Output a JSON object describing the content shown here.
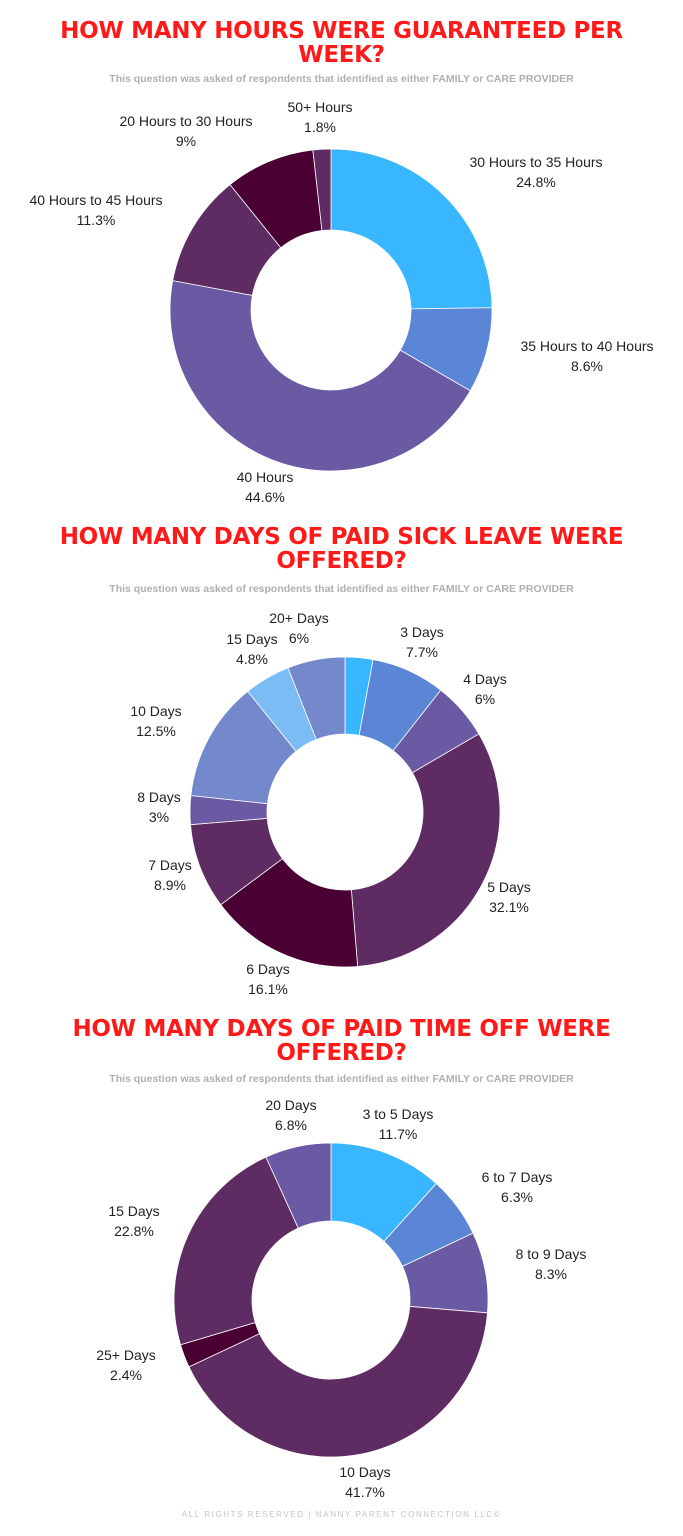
{
  "chart_data": [
    {
      "type": "pie",
      "title": "HOW MANY HOURS WERE GUARANTEED PER WEEK?",
      "subtitle": "This question was asked of respondents that identified as either FAMILY or CARE PROVIDER",
      "donut": true,
      "slices": [
        {
          "label": "30 Hours to 35 Hours",
          "value": 24.8,
          "display": "24.8%",
          "color": "#38b6ff"
        },
        {
          "label": "35 Hours to 40 Hours",
          "value": 8.6,
          "display": "8.6%",
          "color": "#5b86d6"
        },
        {
          "label": "40 Hours",
          "value": 44.6,
          "display": "44.6%",
          "color": "#6a5aa4"
        },
        {
          "label": "40 Hours to 45 Hours",
          "value": 11.3,
          "display": "11.3%",
          "color": "#5e2c62"
        },
        {
          "label": "20 Hours to 30 Hours",
          "value": 9,
          "display": "9%",
          "color": "#4a0033"
        },
        {
          "label": "50+ Hours",
          "value": 1.8,
          "display": "1.8%",
          "color": "#5e2c62"
        }
      ]
    },
    {
      "type": "pie",
      "title": "HOW MANY DAYS OF PAID SICK LEAVE WERE OFFERED?",
      "subtitle": "This question was asked of respondents that identified as either FAMILY or CARE PROVIDER",
      "donut": true,
      "slices": [
        {
          "label": "",
          "value": 2.9,
          "display": "",
          "color": "#38b6ff"
        },
        {
          "label": "3 Days",
          "value": 7.7,
          "display": "7.7%",
          "color": "#5b86d6"
        },
        {
          "label": "4 Days",
          "value": 6,
          "display": "6%",
          "color": "#6a5aa4"
        },
        {
          "label": "5 Days",
          "value": 32.1,
          "display": "32.1%",
          "color": "#5e2c62"
        },
        {
          "label": "6 Days",
          "value": 16.1,
          "display": "16.1%",
          "color": "#4a0033"
        },
        {
          "label": "7 Days",
          "value": 8.9,
          "display": "8.9%",
          "color": "#5e2c62"
        },
        {
          "label": "8 Days",
          "value": 3,
          "display": "3%",
          "color": "#6a5aa4"
        },
        {
          "label": "10 Days",
          "value": 12.5,
          "display": "12.5%",
          "color": "#7489cc"
        },
        {
          "label": "15 Days",
          "value": 4.8,
          "display": "4.8%",
          "color": "#7bbcf7"
        },
        {
          "label": "20+ Days",
          "value": 6,
          "display": "6%",
          "color": "#7489cc"
        }
      ]
    },
    {
      "type": "pie",
      "title": "HOW MANY DAYS OF PAID TIME OFF WERE OFFERED?",
      "subtitle": "This question was asked of respondents that identified as either FAMILY or CARE PROVIDER",
      "donut": true,
      "slices": [
        {
          "label": "3 to 5 Days",
          "value": 11.7,
          "display": "11.7%",
          "color": "#38b6ff"
        },
        {
          "label": "6 to 7 Days",
          "value": 6.3,
          "display": "6.3%",
          "color": "#5b86d6"
        },
        {
          "label": "8 to 9 Days",
          "value": 8.3,
          "display": "8.3%",
          "color": "#6a5aa4"
        },
        {
          "label": "10 Days",
          "value": 41.7,
          "display": "41.7%",
          "color": "#5e2c62"
        },
        {
          "label": "25+ Days",
          "value": 2.4,
          "display": "2.4%",
          "color": "#4a0033"
        },
        {
          "label": "15 Days",
          "value": 22.8,
          "display": "22.8%",
          "color": "#5e2c62"
        },
        {
          "label": "20 Days",
          "value": 6.8,
          "display": "6.8%",
          "color": "#6a5aa4"
        }
      ]
    }
  ],
  "footer": "ALL RIGHTS RESERVED | NANNY PARENT CONNECTION LLC©"
}
